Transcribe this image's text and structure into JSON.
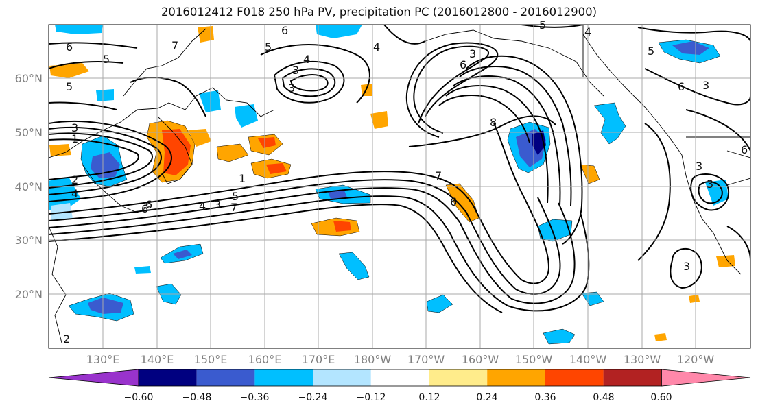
{
  "title": "2016012412 F018 250 hPa PV, precipitation PC (2016012800 - 2016012900)",
  "latitude_labels": [
    "60°N",
    "50°N",
    "40°N",
    "30°N",
    "20°N"
  ],
  "longitude_labels": [
    "130°E",
    "140°E",
    "150°E",
    "160°E",
    "170°E",
    "180°W",
    "170°W",
    "160°W",
    "150°W",
    "140°W",
    "130°W",
    "120°W"
  ],
  "colorbar": {
    "colors": [
      "#9933cc",
      "#000080",
      "#3a5bcf",
      "#00bfff",
      "#b3e5ff",
      "#ffffff",
      "#ffec8b",
      "#ffa500",
      "#ff4500",
      "#b22222",
      "#ff88aa"
    ],
    "labels": [
      "−0.60",
      "−0.48",
      "−0.36",
      "−0.24",
      "−0.12",
      "0.12",
      "0.24",
      "0.36",
      "0.48",
      "0.60"
    ]
  },
  "contour_labels": [
    "6",
    "5",
    "5",
    "7",
    "6",
    "5",
    "4",
    "3",
    "3",
    "3",
    "1",
    "2",
    "4",
    "6",
    "5",
    "4",
    "3",
    "7",
    "1",
    "7",
    "6",
    "8",
    "5",
    "4",
    "6",
    "3",
    "6",
    "3",
    "3",
    "3",
    "4",
    "5",
    "6",
    "3",
    "2",
    "6"
  ],
  "colors": {
    "negative_mid": "#00bfff",
    "positive_mid": "#ffa500",
    "contour": "#000000",
    "grid": "#aaaaaa"
  }
}
